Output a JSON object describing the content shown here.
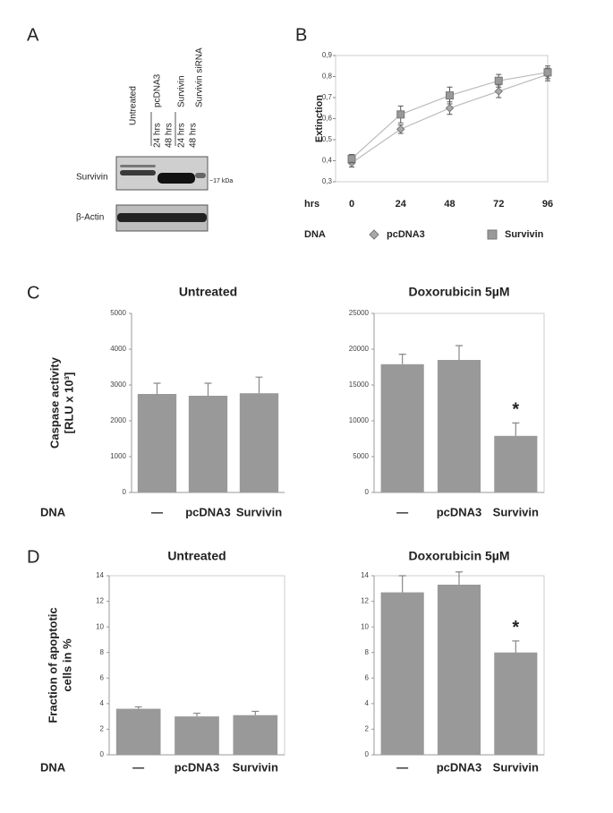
{
  "panel_labels": [
    "A",
    "B",
    "C",
    "D"
  ],
  "blot": {
    "lanes": [
      "Untreated",
      "pcDNA3",
      "Survivin",
      "Survivin siRNA"
    ],
    "times": [
      "24 hrs",
      "48 hrs",
      "24 hrs",
      "48 hrs"
    ],
    "rows": [
      "Survivin",
      "β-Actin"
    ],
    "marker": "~17 kDa"
  },
  "chart_data": [
    {
      "type": "line",
      "ylabel": "Extinction",
      "xlabel": "hrs",
      "legend_title": "DNA",
      "x": [
        0,
        24,
        48,
        72,
        96
      ],
      "xlim": [
        0,
        96
      ],
      "xticks": [
        0,
        24,
        48,
        72,
        96
      ],
      "ylim": [
        0.3,
        0.9
      ],
      "yticks": [
        {
          "value": 0.3,
          "label": "0,3"
        },
        {
          "value": 0.4,
          "label": "0,4"
        },
        {
          "value": 0.5,
          "label": "0,5"
        },
        {
          "value": 0.6,
          "label": "0,6"
        },
        {
          "value": 0.7,
          "label": "0,7"
        },
        {
          "value": 0.8,
          "label": "0,8"
        },
        {
          "value": 0.9,
          "label": "0,9"
        }
      ],
      "series": [
        {
          "name": "pcDNA3",
          "color": "#aaaaaa",
          "marker": "diamond",
          "values": [
            0.39,
            0.55,
            0.65,
            0.73,
            0.81
          ],
          "errors": [
            0.02,
            0.02,
            0.03,
            0.03,
            0.03
          ]
        },
        {
          "name": "Survivin",
          "color": "#999999",
          "marker": "square",
          "values": [
            0.41,
            0.62,
            0.71,
            0.78,
            0.82
          ],
          "errors": [
            0.02,
            0.04,
            0.04,
            0.03,
            0.03
          ]
        }
      ]
    },
    {
      "type": "bar",
      "title": "Untreated",
      "ylabel": [
        "Caspase activity",
        "[RLU x 10³]"
      ],
      "xlabel": "DNA",
      "categories": [
        "—",
        "pcDNA3",
        "Survivin"
      ],
      "values": [
        2750,
        2700,
        2770
      ],
      "errors": [
        300,
        350,
        450
      ],
      "color": "#999999",
      "ylim": [
        0,
        5000
      ],
      "yticks": [
        0,
        1000,
        2000,
        3000,
        4000,
        5000
      ],
      "frame": false
    },
    {
      "type": "bar",
      "title": "Doxorubicin 5µM",
      "annotation": "*",
      "categories": [
        "—",
        "pcDNA3",
        "Survivin"
      ],
      "values": [
        17900,
        18500,
        7900
      ],
      "errors": [
        1400,
        2000,
        1800
      ],
      "color": "#999999",
      "ylim": [
        0,
        25000
      ],
      "yticks": [
        0,
        5000,
        10000,
        15000,
        20000,
        25000
      ],
      "frame": true
    },
    {
      "type": "bar",
      "title": "Untreated",
      "ylabel": [
        "Fraction of apoptotic",
        "cells in %"
      ],
      "xlabel": "DNA",
      "categories": [
        "—",
        "pcDNA3",
        "Survivin"
      ],
      "values": [
        3.6,
        3.0,
        3.1
      ],
      "errors": [
        0.15,
        0.25,
        0.3
      ],
      "color": "#999999",
      "ylim": [
        0,
        14
      ],
      "yticks": [
        0,
        2,
        4,
        6,
        8,
        10,
        12,
        14
      ],
      "frame": true
    },
    {
      "type": "bar",
      "title": "Doxorubicin 5µM",
      "annotation": "*",
      "categories": [
        "—",
        "pcDNA3",
        "Survivin"
      ],
      "values": [
        12.7,
        13.3,
        8.0
      ],
      "errors": [
        1.3,
        1.0,
        0.9
      ],
      "color": "#999999",
      "ylim": [
        0,
        14
      ],
      "yticks": [
        0,
        2,
        4,
        6,
        8,
        10,
        12,
        14
      ],
      "frame": true
    }
  ]
}
